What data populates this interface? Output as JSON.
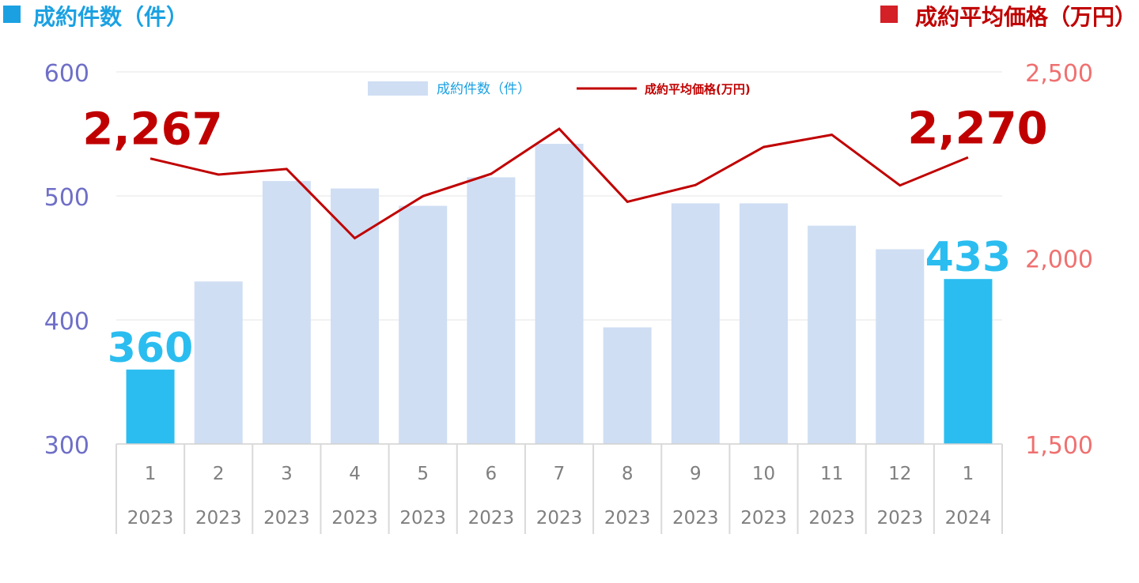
{
  "titles": {
    "left_label": "成約件数（件）",
    "right_label": "成約平均価格（万円）"
  },
  "colors": {
    "left_marker": "#1ba1e2",
    "left_title": "#1ba1e2",
    "right_marker": "#d42027",
    "right_title": "#c00000",
    "bar": "#cfdef3",
    "bar_highlight": "#2bbdf0",
    "line": "#c00000",
    "left_axis": "#6f6fc8",
    "right_axis": "#f07070",
    "category_text": "#7f7f7f",
    "grid": "#e6e6e6"
  },
  "chart_data": {
    "type": "bar+line",
    "categories": [
      {
        "month": "1",
        "year": "2023"
      },
      {
        "month": "2",
        "year": "2023"
      },
      {
        "month": "3",
        "year": "2023"
      },
      {
        "month": "4",
        "year": "2023"
      },
      {
        "month": "5",
        "year": "2023"
      },
      {
        "month": "6",
        "year": "2023"
      },
      {
        "month": "7",
        "year": "2023"
      },
      {
        "month": "8",
        "year": "2023"
      },
      {
        "month": "9",
        "year": "2023"
      },
      {
        "month": "10",
        "year": "2023"
      },
      {
        "month": "11",
        "year": "2023"
      },
      {
        "month": "12",
        "year": "2023"
      },
      {
        "month": "1",
        "year": "2024"
      }
    ],
    "series": [
      {
        "name": "成約件数（件）",
        "type": "bar",
        "axis": "left",
        "values": [
          360,
          431,
          512,
          506,
          492,
          515,
          542,
          394,
          494,
          494,
          476,
          457,
          433
        ],
        "highlight_indices": [
          0,
          12
        ]
      },
      {
        "name": "成約平均価格(万円)",
        "type": "line",
        "axis": "right",
        "values": [
          2267,
          2224,
          2239,
          2053,
          2166,
          2226,
          2347,
          2151,
          2196,
          2298,
          2331,
          2195,
          2270
        ]
      }
    ],
    "data_labels": [
      {
        "series": 0,
        "index": 0,
        "text": "360"
      },
      {
        "series": 0,
        "index": 12,
        "text": "433"
      },
      {
        "series": 1,
        "index": 0,
        "text": "2,267"
      },
      {
        "series": 1,
        "index": 12,
        "text": "2,270"
      }
    ],
    "left_axis": {
      "min": 300,
      "max": 600,
      "ticks": [
        "300",
        "400",
        "500",
        "600"
      ]
    },
    "right_axis": {
      "min": 1500,
      "max": 2500,
      "ticks": [
        "1,500",
        "2,000",
        "2,500"
      ]
    },
    "grid": true,
    "legend_position": "top-center"
  }
}
